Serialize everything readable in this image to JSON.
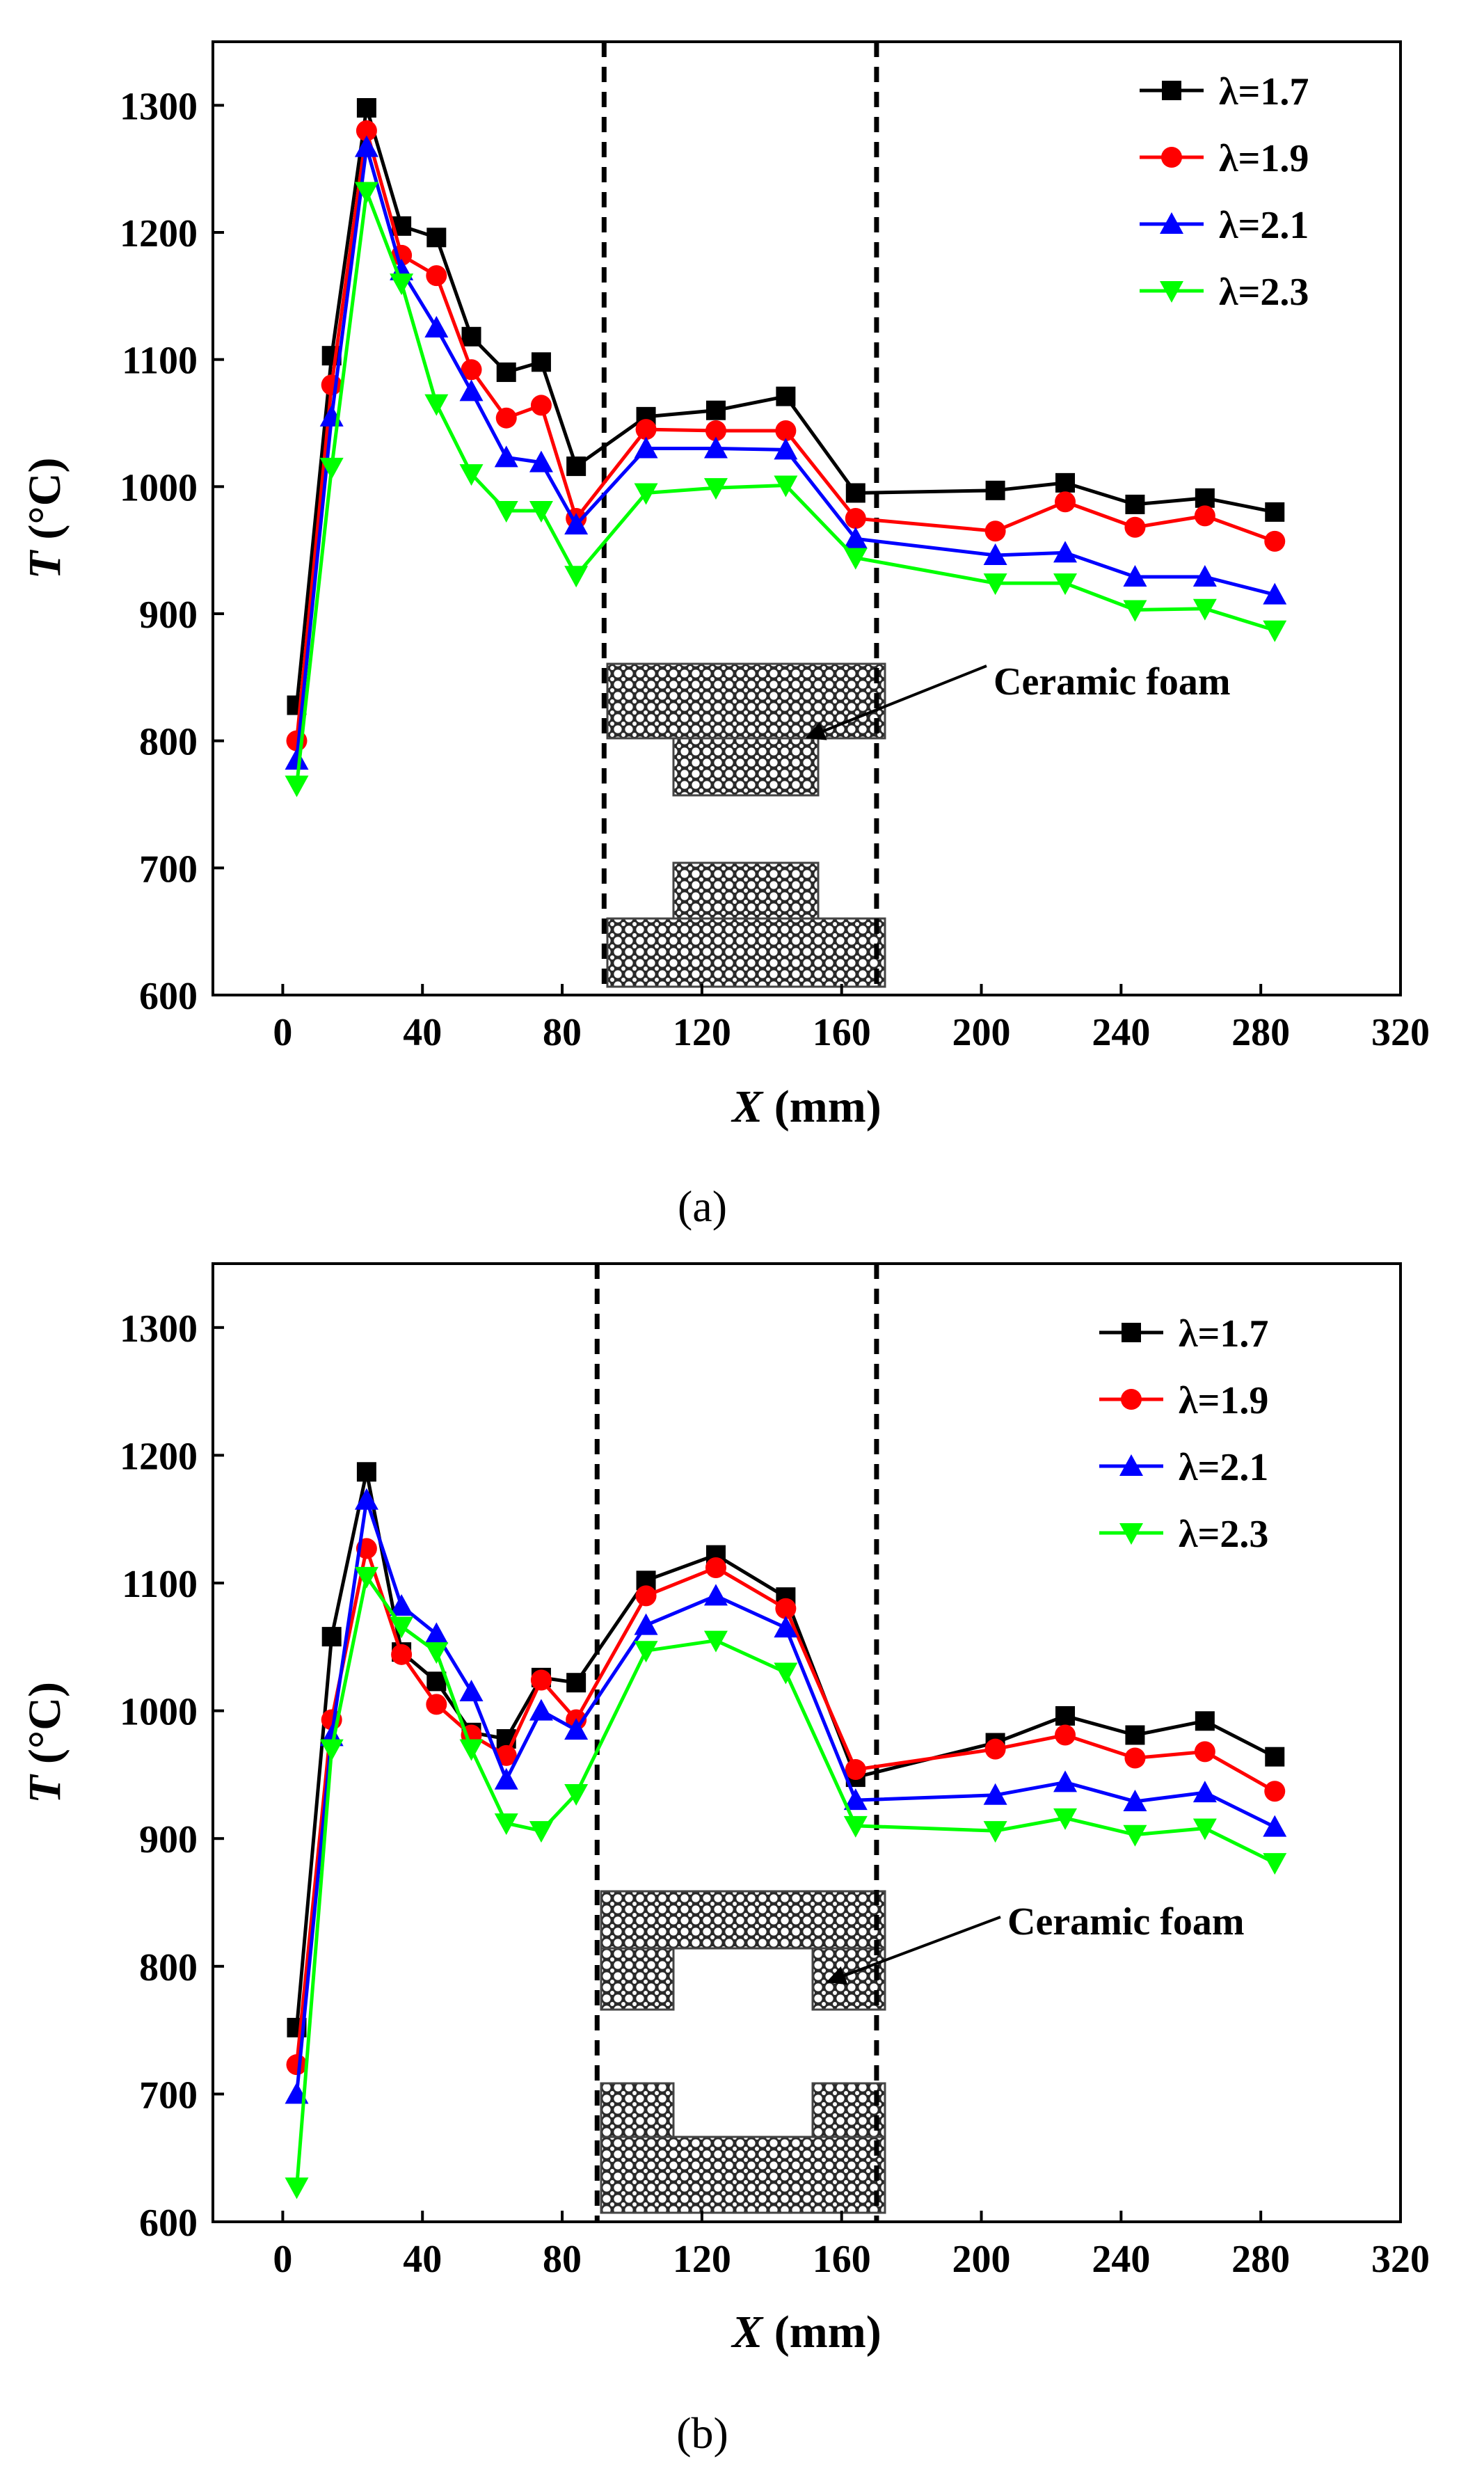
{
  "figure": {
    "panel_labels": [
      "(a)",
      "(b)"
    ]
  },
  "series_styles": [
    {
      "name": "λ=1.7",
      "color": "#000000",
      "marker": "square"
    },
    {
      "name": "λ=1.9",
      "color": "#ff0000",
      "marker": "circle"
    },
    {
      "name": "λ=2.1",
      "color": "#0000ff",
      "marker": "triangle-up"
    },
    {
      "name": "λ=2.3",
      "color": "#00ff00",
      "marker": "triangle-down"
    }
  ],
  "chart_data": [
    {
      "type": "line",
      "panel": "(a)",
      "title": "",
      "xlabel_italic": "X",
      "xlabel_rest": " (mm)",
      "ylabel_italic": "T",
      "ylabel_rest": " (°C)",
      "xlim": [
        -20,
        320
      ],
      "ylim": [
        600,
        1350
      ],
      "xticks": [
        0,
        40,
        80,
        120,
        160,
        200,
        240,
        280,
        320
      ],
      "yticks": [
        600,
        700,
        800,
        900,
        1000,
        1100,
        1200,
        1300
      ],
      "dashed_vlines": [
        92,
        170
      ],
      "annotation": "Ceramic foam",
      "legend_position": "top-right",
      "series": [
        {
          "name": "λ=1.7",
          "x": [
            4,
            14,
            24,
            34,
            44,
            54,
            64,
            74,
            84,
            104,
            124,
            144,
            164,
            204,
            224,
            244,
            264,
            284
          ],
          "values": [
            828,
            1103,
            1298,
            1205,
            1196,
            1118,
            1090,
            1098,
            1016,
            1055,
            1060,
            1071,
            995,
            997,
            1003,
            986,
            991,
            980
          ]
        },
        {
          "name": "λ=1.9",
          "x": [
            4,
            14,
            24,
            34,
            44,
            54,
            64,
            74,
            84,
            104,
            124,
            144,
            164,
            204,
            224,
            244,
            264,
            284
          ],
          "values": [
            800,
            1080,
            1280,
            1182,
            1166,
            1092,
            1054,
            1064,
            975,
            1045,
            1044,
            1044,
            975,
            965,
            988,
            968,
            977,
            957
          ]
        },
        {
          "name": "λ=2.1",
          "x": [
            4,
            14,
            24,
            34,
            44,
            54,
            64,
            74,
            84,
            104,
            124,
            144,
            164,
            204,
            224,
            244,
            264,
            284
          ],
          "values": [
            785,
            1055,
            1267,
            1170,
            1125,
            1075,
            1023,
            1019,
            970,
            1030,
            1030,
            1029,
            959,
            946,
            948,
            929,
            929,
            915
          ]
        },
        {
          "name": "λ=2.3",
          "x": [
            4,
            14,
            24,
            34,
            44,
            54,
            64,
            74,
            84,
            104,
            124,
            144,
            164,
            204,
            224,
            244,
            264,
            284
          ],
          "values": [
            765,
            1015,
            1232,
            1160,
            1065,
            1010,
            981,
            981,
            930,
            995,
            999,
            1001,
            944,
            924,
            924,
            903,
            904,
            887
          ]
        }
      ]
    },
    {
      "type": "line",
      "panel": "(b)",
      "title": "",
      "xlabel_italic": "X",
      "xlabel_rest": " (mm)",
      "ylabel_italic": "T",
      "ylabel_rest": " (°C)",
      "xlim": [
        -20,
        320
      ],
      "ylim": [
        600,
        1350
      ],
      "xticks": [
        0,
        40,
        80,
        120,
        160,
        200,
        240,
        280,
        320
      ],
      "yticks": [
        600,
        700,
        800,
        900,
        1000,
        1100,
        1200,
        1300
      ],
      "dashed_vlines": [
        90,
        170
      ],
      "annotation": "Ceramic foam",
      "legend_position": "top-right",
      "series": [
        {
          "name": "λ=1.7",
          "x": [
            4,
            14,
            24,
            34,
            44,
            54,
            64,
            74,
            84,
            104,
            124,
            144,
            164,
            204,
            224,
            244,
            264,
            284
          ],
          "values": [
            752,
            1058,
            1187,
            1046,
            1023,
            983,
            978,
            1026,
            1022,
            1102,
            1122,
            1089,
            948,
            975,
            996,
            981,
            992,
            964
          ]
        },
        {
          "name": "λ=1.9",
          "x": [
            4,
            14,
            24,
            34,
            44,
            54,
            64,
            74,
            84,
            104,
            124,
            144,
            164,
            204,
            224,
            244,
            264,
            284
          ],
          "values": [
            723,
            993,
            1127,
            1044,
            1005,
            981,
            965,
            1024,
            993,
            1090,
            1112,
            1080,
            954,
            970,
            981,
            963,
            968,
            937
          ]
        },
        {
          "name": "λ=2.1",
          "x": [
            4,
            14,
            24,
            34,
            44,
            54,
            64,
            74,
            84,
            104,
            124,
            144,
            164,
            204,
            224,
            244,
            264,
            284
          ],
          "values": [
            700,
            980,
            1165,
            1082,
            1060,
            1015,
            946,
            1000,
            985,
            1067,
            1090,
            1065,
            930,
            934,
            944,
            929,
            936,
            909
          ]
        },
        {
          "name": "λ=2.3",
          "x": [
            4,
            14,
            24,
            34,
            44,
            54,
            64,
            74,
            84,
            104,
            124,
            144,
            164,
            204,
            224,
            244,
            264,
            284
          ],
          "values": [
            627,
            970,
            1105,
            1066,
            1046,
            970,
            912,
            906,
            935,
            1047,
            1055,
            1030,
            910,
            906,
            916,
            903,
            908,
            881
          ]
        }
      ]
    }
  ]
}
